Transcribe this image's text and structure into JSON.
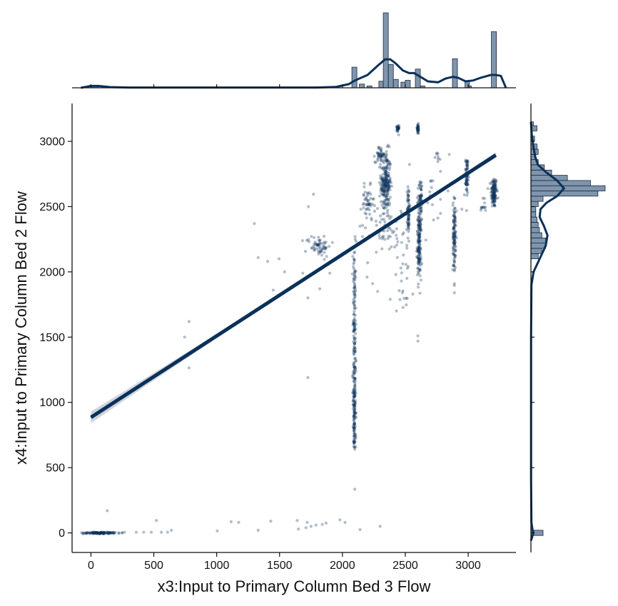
{
  "chart_data": {
    "type": "scatter",
    "subtype": "jointplot with regression line, marginal histograms and KDE curves",
    "xlabel": "x3:Input to Primary Column Bed 3 Flow",
    "ylabel": "x4:Input to Primary Column Bed 2 Flow",
    "xlim": [
      -150,
      3380
    ],
    "ylim": [
      -150,
      3290
    ],
    "xticks": [
      0,
      500,
      1000,
      1500,
      2000,
      2500,
      3000
    ],
    "yticks": [
      0,
      500,
      1000,
      1500,
      2000,
      2500,
      3000
    ],
    "grid": false,
    "colors": {
      "main": "#0b3159",
      "hist_fill": "#7f95ad",
      "band": "#c9d0d9"
    },
    "regression": {
      "x": [
        0,
        3220
      ],
      "y": [
        885,
        2895
      ],
      "ci_halfwidth_at_x0": 45
    },
    "clusters": [
      {
        "x": 3205,
        "y": 2610,
        "n": 120,
        "dx": 12,
        "dy": 60
      },
      {
        "x": 2345,
        "y": 2680,
        "n": 220,
        "dx": 20,
        "dy": 120
      },
      {
        "x": 2610,
        "y": 2210,
        "n": 150,
        "dx": 8,
        "dy": 130
      },
      {
        "x": 2890,
        "y": 2280,
        "n": 110,
        "dx": 6,
        "dy": 140
      },
      {
        "x": 2990,
        "y": 2740,
        "n": 70,
        "dx": 5,
        "dy": 70
      },
      {
        "x": 2440,
        "y": 3095,
        "n": 30,
        "dx": 5,
        "dy": 15
      },
      {
        "x": 2600,
        "y": 3095,
        "n": 30,
        "dx": 5,
        "dy": 20
      },
      {
        "x": 2300,
        "y": 2900,
        "n": 40,
        "dx": 20,
        "dy": 30
      },
      {
        "x": 2200,
        "y": 2510,
        "n": 50,
        "dx": 25,
        "dy": 70
      },
      {
        "x": 1810,
        "y": 2200,
        "n": 60,
        "dx": 50,
        "dy": 40
      },
      {
        "x": 2525,
        "y": 2480,
        "n": 70,
        "dx": 5,
        "dy": 100
      },
      {
        "x": 2620,
        "y": 2550,
        "n": 50,
        "dx": 8,
        "dy": 80
      },
      {
        "x": 2350,
        "y": 2320,
        "n": 40,
        "dx": 60,
        "dy": 80
      },
      {
        "x": 2490,
        "y": 2050,
        "n": 30,
        "dx": 40,
        "dy": 200
      },
      {
        "x": 2760,
        "y": 2880,
        "n": 8,
        "dx": 10,
        "dy": 20
      },
      {
        "x": 3120,
        "y": 2520,
        "n": 12,
        "dx": 15,
        "dy": 40
      },
      {
        "x": 2700,
        "y": 2500,
        "n": 20,
        "dx": 60,
        "dy": 120
      },
      {
        "x": 50,
        "y": 0,
        "n": 90,
        "dx": 55,
        "dy": 3
      },
      {
        "x": 150,
        "y": 0,
        "n": 40,
        "dx": 60,
        "dy": 3
      }
    ],
    "vertical_streak": {
      "x": 2095,
      "dx": 6,
      "n": 260,
      "y_from": 650,
      "y_to": 2330
    },
    "scatter_points": [
      [
        2098,
        335
      ],
      [
        2098,
        640
      ],
      [
        1770,
        2595
      ],
      [
        1730,
        2500
      ],
      [
        1330,
        2110
      ],
      [
        1495,
        2100
      ],
      [
        1405,
        2080
      ],
      [
        780,
        1620
      ],
      [
        745,
        1500
      ],
      [
        780,
        1265
      ],
      [
        1725,
        1190
      ],
      [
        1450,
        1860
      ],
      [
        1725,
        1800
      ],
      [
        1685,
        1990
      ],
      [
        1540,
        2000
      ],
      [
        1820,
        1870
      ],
      [
        1900,
        1990
      ],
      [
        2140,
        2350
      ],
      [
        1300,
        2370
      ],
      [
        2240,
        1910
      ],
      [
        2200,
        2070
      ],
      [
        2280,
        1850
      ],
      [
        2380,
        1790
      ],
      [
        2430,
        1700
      ],
      [
        2560,
        1830
      ],
      [
        2600,
        1510
      ],
      [
        2600,
        1470
      ],
      [
        2890,
        1910
      ],
      [
        2890,
        1840
      ],
      [
        2880,
        2050
      ],
      [
        2840,
        2620
      ],
      [
        2780,
        2770
      ],
      [
        2270,
        2150
      ],
      [
        2440,
        2230
      ],
      [
        2195,
        1960
      ],
      [
        2850,
        2900
      ],
      [
        2970,
        2590
      ],
      [
        2950,
        2480
      ],
      [
        2160,
        2270
      ],
      [
        130,
        170
      ],
      [
        520,
        95
      ],
      [
        640,
        20
      ],
      [
        1005,
        15
      ],
      [
        1115,
        85
      ],
      [
        1175,
        80
      ],
      [
        1330,
        20
      ],
      [
        1430,
        90
      ],
      [
        1640,
        95
      ],
      [
        1720,
        80
      ],
      [
        1750,
        50
      ],
      [
        1790,
        60
      ],
      [
        1840,
        65
      ],
      [
        1870,
        75
      ],
      [
        1980,
        100
      ],
      [
        2020,
        80
      ],
      [
        2140,
        25
      ],
      [
        2300,
        50
      ],
      [
        1710,
        40
      ],
      [
        360,
        5
      ],
      [
        420,
        5
      ],
      [
        480,
        5
      ],
      [
        560,
        5
      ],
      [
        610,
        5
      ],
      [
        1650,
        30
      ]
    ],
    "x_marginal": {
      "bins": [
        {
          "x0": 0,
          "x1": 60,
          "count": 2
        },
        {
          "x0": 2075,
          "x1": 2115,
          "count": 22
        },
        {
          "x0": 2135,
          "x1": 2175,
          "count": 4
        },
        {
          "x0": 2195,
          "x1": 2235,
          "count": 2
        },
        {
          "x0": 2290,
          "x1": 2325,
          "count": 7
        },
        {
          "x0": 2325,
          "x1": 2365,
          "count": 80
        },
        {
          "x0": 2365,
          "x1": 2405,
          "count": 25
        },
        {
          "x0": 2405,
          "x1": 2445,
          "count": 9
        },
        {
          "x0": 2465,
          "x1": 2500,
          "count": 6
        },
        {
          "x0": 2500,
          "x1": 2540,
          "count": 8
        },
        {
          "x0": 2580,
          "x1": 2620,
          "count": 20
        },
        {
          "x0": 2620,
          "x1": 2655,
          "count": 2
        },
        {
          "x0": 2875,
          "x1": 2915,
          "count": 31
        },
        {
          "x0": 2975,
          "x1": 3010,
          "count": 7
        },
        {
          "x0": 3010,
          "x1": 3025,
          "count": 2
        },
        {
          "x0": 3185,
          "x1": 3225,
          "count": 60
        }
      ],
      "kde_x": [
        -80,
        0,
        60,
        150,
        300,
        1800,
        1950,
        2050,
        2100,
        2200,
        2280,
        2340,
        2380,
        2420,
        2480,
        2530,
        2570,
        2620,
        2680,
        2760,
        2820,
        2880,
        2920,
        2980,
        3040,
        3100,
        3180,
        3220,
        3260,
        3300
      ],
      "kde_y": [
        0,
        2,
        2,
        0.8,
        0.3,
        0.3,
        1,
        4,
        8,
        14,
        24,
        31,
        31,
        27,
        19,
        16,
        16,
        12,
        7,
        6,
        10,
        12,
        11,
        7,
        8,
        11,
        14,
        14,
        13,
        0
      ]
    },
    "y_marginal": {
      "bins": [
        {
          "y0": -20,
          "y1": 20,
          "count": 10
        },
        {
          "y0": 2100,
          "y1": 2140,
          "count": 6
        },
        {
          "y0": 2140,
          "y1": 2180,
          "count": 9
        },
        {
          "y0": 2180,
          "y1": 2220,
          "count": 12
        },
        {
          "y0": 2220,
          "y1": 2260,
          "count": 12
        },
        {
          "y0": 2260,
          "y1": 2300,
          "count": 9
        },
        {
          "y0": 2300,
          "y1": 2340,
          "count": 7
        },
        {
          "y0": 2340,
          "y1": 2380,
          "count": 6
        },
        {
          "y0": 2380,
          "y1": 2420,
          "count": 5
        },
        {
          "y0": 2420,
          "y1": 2460,
          "count": 4
        },
        {
          "y0": 2460,
          "y1": 2500,
          "count": 4
        },
        {
          "y0": 2500,
          "y1": 2540,
          "count": 6
        },
        {
          "y0": 2540,
          "y1": 2580,
          "count": 10
        },
        {
          "y0": 2580,
          "y1": 2620,
          "count": 55
        },
        {
          "y0": 2620,
          "y1": 2660,
          "count": 61
        },
        {
          "y0": 2660,
          "y1": 2700,
          "count": 49
        },
        {
          "y0": 2700,
          "y1": 2740,
          "count": 30
        },
        {
          "y0": 2740,
          "y1": 2780,
          "count": 17
        },
        {
          "y0": 2780,
          "y1": 2820,
          "count": 11
        },
        {
          "y0": 2820,
          "y1": 2860,
          "count": 6
        },
        {
          "y0": 2860,
          "y1": 2900,
          "count": 4
        },
        {
          "y0": 2900,
          "y1": 2940,
          "count": 6
        },
        {
          "y0": 2940,
          "y1": 2980,
          "count": 5
        },
        {
          "y0": 3000,
          "y1": 3040,
          "count": 3
        },
        {
          "y0": 3080,
          "y1": 3120,
          "count": 5
        },
        {
          "y0": 3120,
          "y1": 3150,
          "count": 2
        }
      ],
      "kde_y": [
        -60,
        -10,
        0,
        30,
        80,
        400,
        1500,
        1900,
        2000,
        2100,
        2200,
        2280,
        2350,
        2420,
        2480,
        2530,
        2580,
        2640,
        2700,
        2760,
        2820,
        2880,
        2950,
        3050,
        3150
      ],
      "kde_val": [
        0,
        1.2,
        1.4,
        0.8,
        0.3,
        0.1,
        0.1,
        0.3,
        1.5,
        5,
        8.5,
        9.5,
        7.5,
        5,
        5.5,
        9,
        15,
        19,
        15,
        9,
        4,
        2.5,
        1.5,
        0.5,
        0
      ]
    }
  }
}
